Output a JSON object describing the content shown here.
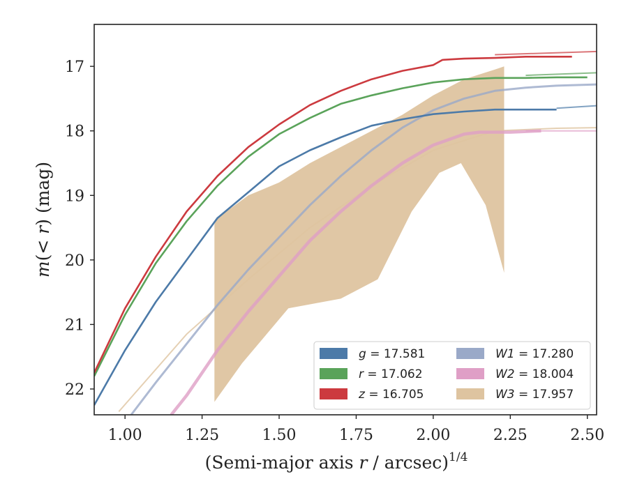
{
  "chart_data": {
    "type": "line",
    "xlabel": "(Semi-major axis r / arcsec)",
    "xlabel_parts": {
      "prefix": "(Semi-major axis ",
      "var": "r",
      "suffix": " / arcsec)",
      "exp": "1/4"
    },
    "ylabel_parts": {
      "a": "m",
      "b": "(< ",
      "c": "r",
      "d": ") (mag)"
    },
    "xlim": [
      0.9,
      2.53
    ],
    "ylim": [
      22.4,
      16.35
    ],
    "y_inverted": true,
    "xticks": [
      "1.00",
      "1.25",
      "1.50",
      "1.75",
      "2.00",
      "2.25",
      "2.50"
    ],
    "xtick_values": [
      1.0,
      1.25,
      1.5,
      1.75,
      2.0,
      2.25,
      2.5
    ],
    "yticks": [
      "17",
      "18",
      "19",
      "20",
      "21",
      "22"
    ],
    "ytick_values": [
      17,
      18,
      19,
      20,
      21,
      22
    ],
    "grid": false,
    "legend_position": "lower-right",
    "legend": [
      {
        "var": "g",
        "text": " = 17.581",
        "color": "#4c7aa8"
      },
      {
        "var": "r",
        "text": " = 17.062",
        "color": "#5aa35a"
      },
      {
        "var": "z",
        "text": " = 16.705",
        "color": "#cc3a3f"
      },
      {
        "var": "W1",
        "text": " = 17.280",
        "color": "#9aa9c8"
      },
      {
        "var": "W2",
        "text": " = 18.004",
        "color": "#df9fc6"
      },
      {
        "var": "W3",
        "text": " = 17.957",
        "color": "#dec4a0"
      }
    ],
    "series": [
      {
        "name": "g",
        "color": "#4c7aa8",
        "x": [
          0.9,
          1.0,
          1.1,
          1.2,
          1.3,
          1.4,
          1.5,
          1.6,
          1.7,
          1.8,
          1.9,
          2.0,
          2.1,
          2.2,
          2.3,
          2.4
        ],
        "y": [
          22.25,
          21.4,
          20.65,
          20.0,
          19.35,
          18.95,
          18.55,
          18.3,
          18.1,
          17.92,
          17.82,
          17.74,
          17.7,
          17.67,
          17.67,
          17.67
        ],
        "model_x": [
          2.4,
          2.53
        ],
        "model_y": [
          17.65,
          17.61
        ]
      },
      {
        "name": "r",
        "color": "#5aa35a",
        "x": [
          0.9,
          1.0,
          1.1,
          1.2,
          1.3,
          1.4,
          1.5,
          1.6,
          1.7,
          1.8,
          1.9,
          2.0,
          2.1,
          2.2,
          2.3,
          2.4,
          2.5
        ],
        "y": [
          21.8,
          20.85,
          20.05,
          19.4,
          18.85,
          18.4,
          18.05,
          17.8,
          17.58,
          17.45,
          17.34,
          17.25,
          17.2,
          17.18,
          17.18,
          17.17,
          17.17
        ],
        "model_x": [
          2.3,
          2.53
        ],
        "model_y": [
          17.14,
          17.1
        ]
      },
      {
        "name": "z",
        "color": "#cc3a3f",
        "x": [
          0.9,
          1.0,
          1.1,
          1.2,
          1.3,
          1.4,
          1.5,
          1.6,
          1.7,
          1.8,
          1.9,
          2.0,
          2.03,
          2.1,
          2.2,
          2.3,
          2.45
        ],
        "y": [
          21.75,
          20.75,
          19.95,
          19.25,
          18.7,
          18.25,
          17.9,
          17.6,
          17.38,
          17.2,
          17.07,
          16.98,
          16.9,
          16.88,
          16.87,
          16.85,
          16.85
        ],
        "model_x": [
          2.2,
          2.53
        ],
        "model_y": [
          16.82,
          16.77
        ]
      },
      {
        "name": "W1",
        "color": "#9aa9c8",
        "x": [
          1.02,
          1.1,
          1.2,
          1.3,
          1.4,
          1.5,
          1.6,
          1.7,
          1.8,
          1.9,
          2.0,
          2.1,
          2.2,
          2.3,
          2.4,
          2.53
        ],
        "y": [
          22.4,
          21.9,
          21.3,
          20.7,
          20.15,
          19.65,
          19.15,
          18.7,
          18.3,
          17.95,
          17.68,
          17.5,
          17.38,
          17.33,
          17.3,
          17.28
        ]
      },
      {
        "name": "W2",
        "color": "#df9fc6",
        "x": [
          1.15,
          1.2,
          1.3,
          1.4,
          1.5,
          1.6,
          1.7,
          1.8,
          1.9,
          2.0,
          2.1,
          2.15,
          2.25,
          2.35
        ],
        "y": [
          22.4,
          22.1,
          21.4,
          20.8,
          20.25,
          19.7,
          19.25,
          18.85,
          18.5,
          18.22,
          18.05,
          18.02,
          18.02,
          18.0
        ],
        "model_x": [
          2.3,
          2.53
        ],
        "model_y": [
          18.0,
          18.0
        ]
      },
      {
        "name": "W3",
        "color": "#dec4a0",
        "band_x": [
          1.29,
          1.3,
          1.4,
          1.5,
          1.6,
          1.7,
          1.8,
          1.9,
          2.0,
          2.1,
          2.2,
          2.23
        ],
        "band_upper": [
          19.45,
          19.35,
          19.0,
          18.8,
          18.5,
          18.25,
          18.0,
          17.75,
          17.45,
          17.2,
          17.05,
          17.0
        ],
        "band_lower_x": [
          1.29,
          1.38,
          1.53,
          1.7,
          1.82,
          1.93,
          2.02,
          2.09,
          2.17,
          2.23
        ],
        "band_lower": [
          22.2,
          21.6,
          20.75,
          20.6,
          20.3,
          19.25,
          18.65,
          18.5,
          19.15,
          20.2
        ],
        "model_x": [
          0.98,
          1.2,
          1.4,
          1.6,
          1.8,
          2.0,
          2.2,
          2.4,
          2.53
        ],
        "model_y": [
          22.35,
          21.15,
          20.3,
          19.5,
          18.85,
          18.3,
          18.0,
          17.96,
          17.95
        ]
      }
    ]
  }
}
